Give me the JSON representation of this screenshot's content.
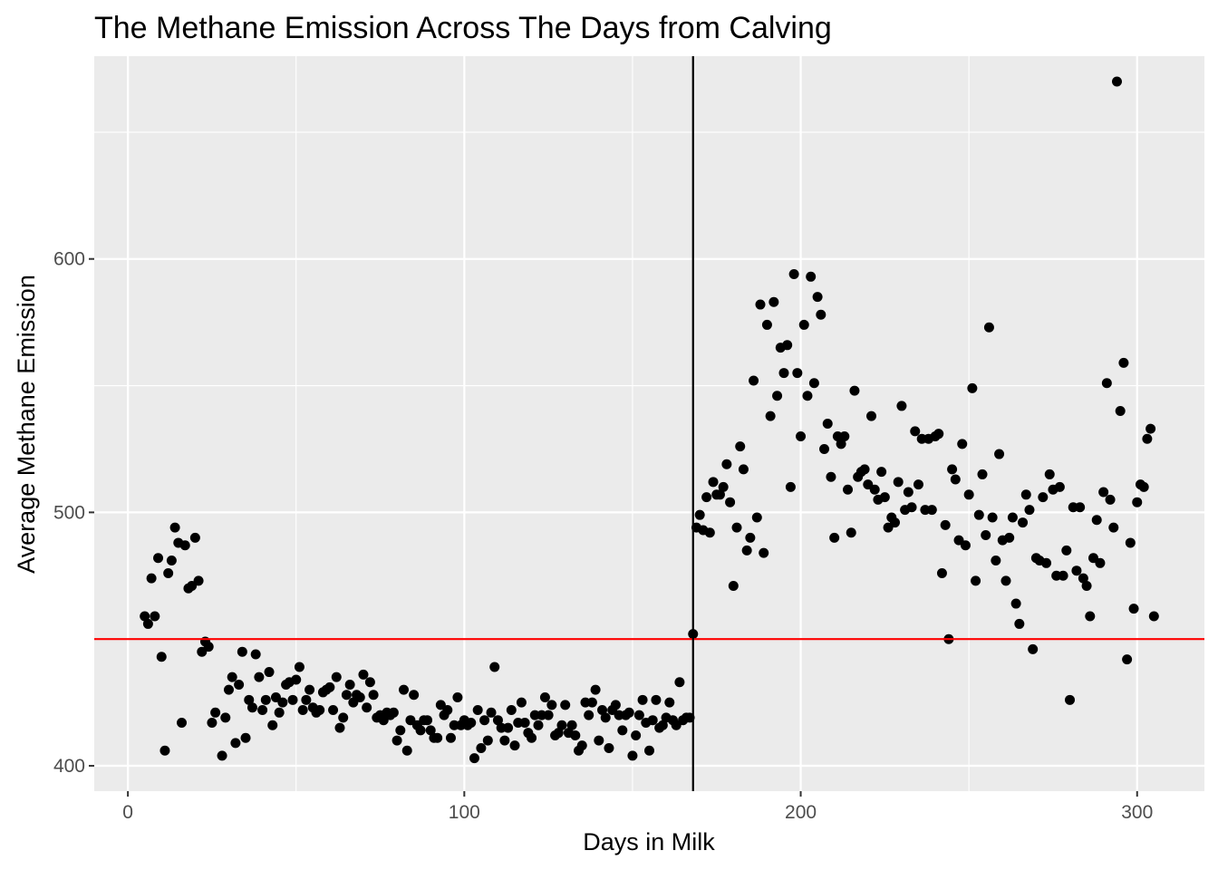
{
  "chart_data": {
    "type": "scatter",
    "title": "The Methane Emission Across The Days from Calving",
    "xlabel": "Days in Milk",
    "ylabel": "Average Methane Emission",
    "xlim": [
      -10,
      320
    ],
    "ylim": [
      390,
      680
    ],
    "x_ticks": [
      0,
      100,
      200,
      300
    ],
    "y_ticks": [
      400,
      500,
      600
    ],
    "x_tick_labels": [
      "0",
      "100",
      "200",
      "300"
    ],
    "y_tick_labels": [
      "400",
      "500",
      "600"
    ],
    "grid": true,
    "legend": "none",
    "background_color": "#ebebeb",
    "grid_color": "#ffffff",
    "point_color": "#000000",
    "reference_lines": [
      {
        "orientation": "horizontal",
        "value": 450,
        "color": "#ff0000"
      },
      {
        "orientation": "vertical",
        "value": 168,
        "color": "#000000"
      }
    ],
    "series": [
      {
        "points": [
          [
            5,
            459
          ],
          [
            6,
            456
          ],
          [
            7,
            474
          ],
          [
            8,
            459
          ],
          [
            9,
            482
          ],
          [
            10,
            443
          ],
          [
            11,
            406
          ],
          [
            12,
            476
          ],
          [
            13,
            481
          ],
          [
            14,
            494
          ],
          [
            15,
            488
          ],
          [
            16,
            417
          ],
          [
            17,
            487
          ],
          [
            18,
            470
          ],
          [
            19,
            471
          ],
          [
            20,
            490
          ],
          [
            21,
            473
          ],
          [
            22,
            445
          ],
          [
            23,
            449
          ],
          [
            24,
            447
          ],
          [
            25,
            417
          ],
          [
            26,
            421
          ],
          [
            28,
            404
          ],
          [
            29,
            419
          ],
          [
            30,
            430
          ],
          [
            31,
            435
          ],
          [
            32,
            409
          ],
          [
            33,
            432
          ],
          [
            34,
            445
          ],
          [
            35,
            411
          ],
          [
            36,
            426
          ],
          [
            37,
            423
          ],
          [
            38,
            444
          ],
          [
            39,
            435
          ],
          [
            40,
            422
          ],
          [
            41,
            426
          ],
          [
            42,
            437
          ],
          [
            43,
            416
          ],
          [
            44,
            427
          ],
          [
            45,
            421
          ],
          [
            46,
            425
          ],
          [
            47,
            432
          ],
          [
            48,
            433
          ],
          [
            49,
            426
          ],
          [
            50,
            434
          ],
          [
            51,
            439
          ],
          [
            52,
            422
          ],
          [
            53,
            426
          ],
          [
            54,
            430
          ],
          [
            55,
            423
          ],
          [
            56,
            421
          ],
          [
            57,
            422
          ],
          [
            58,
            429
          ],
          [
            59,
            430
          ],
          [
            60,
            431
          ],
          [
            61,
            422
          ],
          [
            62,
            435
          ],
          [
            63,
            415
          ],
          [
            64,
            419
          ],
          [
            65,
            428
          ],
          [
            66,
            432
          ],
          [
            67,
            425
          ],
          [
            68,
            428
          ],
          [
            69,
            427
          ],
          [
            70,
            436
          ],
          [
            71,
            423
          ],
          [
            72,
            433
          ],
          [
            73,
            428
          ],
          [
            74,
            419
          ],
          [
            75,
            420
          ],
          [
            76,
            418
          ],
          [
            77,
            421
          ],
          [
            78,
            420
          ],
          [
            79,
            421
          ],
          [
            80,
            410
          ],
          [
            81,
            414
          ],
          [
            82,
            430
          ],
          [
            83,
            406
          ],
          [
            84,
            418
          ],
          [
            85,
            428
          ],
          [
            86,
            416
          ],
          [
            87,
            414
          ],
          [
            88,
            418
          ],
          [
            89,
            418
          ],
          [
            90,
            414
          ],
          [
            91,
            411
          ],
          [
            92,
            411
          ],
          [
            93,
            424
          ],
          [
            94,
            420
          ],
          [
            95,
            422
          ],
          [
            96,
            411
          ],
          [
            97,
            416
          ],
          [
            98,
            427
          ],
          [
            99,
            416
          ],
          [
            100,
            418
          ],
          [
            101,
            416
          ],
          [
            102,
            417
          ],
          [
            103,
            403
          ],
          [
            104,
            422
          ],
          [
            105,
            407
          ],
          [
            106,
            418
          ],
          [
            107,
            410
          ],
          [
            108,
            421
          ],
          [
            109,
            439
          ],
          [
            110,
            418
          ],
          [
            111,
            415
          ],
          [
            112,
            410
          ],
          [
            113,
            415
          ],
          [
            114,
            422
          ],
          [
            115,
            408
          ],
          [
            116,
            417
          ],
          [
            117,
            425
          ],
          [
            118,
            417
          ],
          [
            119,
            413
          ],
          [
            120,
            411
          ],
          [
            121,
            420
          ],
          [
            122,
            416
          ],
          [
            123,
            420
          ],
          [
            124,
            427
          ],
          [
            125,
            420
          ],
          [
            126,
            424
          ],
          [
            127,
            412
          ],
          [
            128,
            413
          ],
          [
            129,
            416
          ],
          [
            130,
            424
          ],
          [
            131,
            413
          ],
          [
            132,
            416
          ],
          [
            133,
            412
          ],
          [
            134,
            406
          ],
          [
            135,
            408
          ],
          [
            136,
            425
          ],
          [
            137,
            420
          ],
          [
            138,
            425
          ],
          [
            139,
            430
          ],
          [
            140,
            410
          ],
          [
            141,
            422
          ],
          [
            142,
            419
          ],
          [
            143,
            407
          ],
          [
            144,
            422
          ],
          [
            145,
            424
          ],
          [
            146,
            420
          ],
          [
            147,
            414
          ],
          [
            148,
            420
          ],
          [
            149,
            421
          ],
          [
            150,
            404
          ],
          [
            151,
            412
          ],
          [
            152,
            420
          ],
          [
            153,
            426
          ],
          [
            154,
            417
          ],
          [
            155,
            406
          ],
          [
            156,
            418
          ],
          [
            157,
            426
          ],
          [
            158,
            415
          ],
          [
            159,
            416
          ],
          [
            160,
            419
          ],
          [
            161,
            425
          ],
          [
            162,
            418
          ],
          [
            163,
            416
          ],
          [
            164,
            433
          ],
          [
            165,
            418
          ],
          [
            166,
            419
          ],
          [
            167,
            419
          ],
          [
            168,
            452
          ],
          [
            169,
            494
          ],
          [
            170,
            499
          ],
          [
            171,
            493
          ],
          [
            172,
            506
          ],
          [
            173,
            492
          ],
          [
            174,
            512
          ],
          [
            175,
            507
          ],
          [
            176,
            507
          ],
          [
            177,
            510
          ],
          [
            178,
            519
          ],
          [
            179,
            504
          ],
          [
            180,
            471
          ],
          [
            181,
            494
          ],
          [
            182,
            526
          ],
          [
            183,
            517
          ],
          [
            184,
            485
          ],
          [
            185,
            490
          ],
          [
            186,
            552
          ],
          [
            187,
            498
          ],
          [
            188,
            582
          ],
          [
            189,
            484
          ],
          [
            190,
            574
          ],
          [
            191,
            538
          ],
          [
            192,
            583
          ],
          [
            193,
            546
          ],
          [
            194,
            565
          ],
          [
            195,
            555
          ],
          [
            196,
            566
          ],
          [
            197,
            510
          ],
          [
            198,
            594
          ],
          [
            199,
            555
          ],
          [
            200,
            530
          ],
          [
            201,
            574
          ],
          [
            202,
            546
          ],
          [
            203,
            593
          ],
          [
            204,
            551
          ],
          [
            205,
            585
          ],
          [
            206,
            578
          ],
          [
            207,
            525
          ],
          [
            208,
            535
          ],
          [
            209,
            514
          ],
          [
            210,
            490
          ],
          [
            211,
            530
          ],
          [
            212,
            527
          ],
          [
            213,
            530
          ],
          [
            214,
            509
          ],
          [
            215,
            492
          ],
          [
            216,
            548
          ],
          [
            217,
            514
          ],
          [
            218,
            516
          ],
          [
            219,
            517
          ],
          [
            220,
            511
          ],
          [
            221,
            538
          ],
          [
            222,
            509
          ],
          [
            223,
            505
          ],
          [
            224,
            516
          ],
          [
            225,
            506
          ],
          [
            226,
            494
          ],
          [
            227,
            498
          ],
          [
            228,
            496
          ],
          [
            229,
            512
          ],
          [
            230,
            542
          ],
          [
            231,
            501
          ],
          [
            232,
            508
          ],
          [
            233,
            502
          ],
          [
            234,
            532
          ],
          [
            235,
            511
          ],
          [
            236,
            529
          ],
          [
            237,
            501
          ],
          [
            238,
            529
          ],
          [
            239,
            501
          ],
          [
            240,
            530
          ],
          [
            241,
            531
          ],
          [
            242,
            476
          ],
          [
            243,
            495
          ],
          [
            244,
            450
          ],
          [
            245,
            517
          ],
          [
            246,
            513
          ],
          [
            247,
            489
          ],
          [
            248,
            527
          ],
          [
            249,
            487
          ],
          [
            250,
            507
          ],
          [
            251,
            549
          ],
          [
            252,
            473
          ],
          [
            253,
            499
          ],
          [
            254,
            515
          ],
          [
            255,
            491
          ],
          [
            256,
            573
          ],
          [
            257,
            498
          ],
          [
            258,
            481
          ],
          [
            259,
            523
          ],
          [
            260,
            489
          ],
          [
            261,
            473
          ],
          [
            262,
            490
          ],
          [
            263,
            498
          ],
          [
            264,
            464
          ],
          [
            265,
            456
          ],
          [
            266,
            496
          ],
          [
            267,
            507
          ],
          [
            268,
            501
          ],
          [
            269,
            446
          ],
          [
            270,
            482
          ],
          [
            271,
            481
          ],
          [
            272,
            506
          ],
          [
            273,
            480
          ],
          [
            274,
            515
          ],
          [
            275,
            509
          ],
          [
            276,
            475
          ],
          [
            277,
            510
          ],
          [
            278,
            475
          ],
          [
            279,
            485
          ],
          [
            280,
            426
          ],
          [
            281,
            502
          ],
          [
            282,
            477
          ],
          [
            283,
            502
          ],
          [
            284,
            474
          ],
          [
            285,
            471
          ],
          [
            286,
            459
          ],
          [
            287,
            482
          ],
          [
            288,
            497
          ],
          [
            289,
            480
          ],
          [
            290,
            508
          ],
          [
            291,
            551
          ],
          [
            292,
            505
          ],
          [
            293,
            494
          ],
          [
            294,
            670
          ],
          [
            295,
            540
          ],
          [
            296,
            559
          ],
          [
            297,
            442
          ],
          [
            298,
            488
          ],
          [
            299,
            462
          ],
          [
            300,
            504
          ],
          [
            301,
            511
          ],
          [
            302,
            510
          ],
          [
            303,
            529
          ],
          [
            304,
            533
          ],
          [
            305,
            459
          ]
        ]
      }
    ]
  }
}
